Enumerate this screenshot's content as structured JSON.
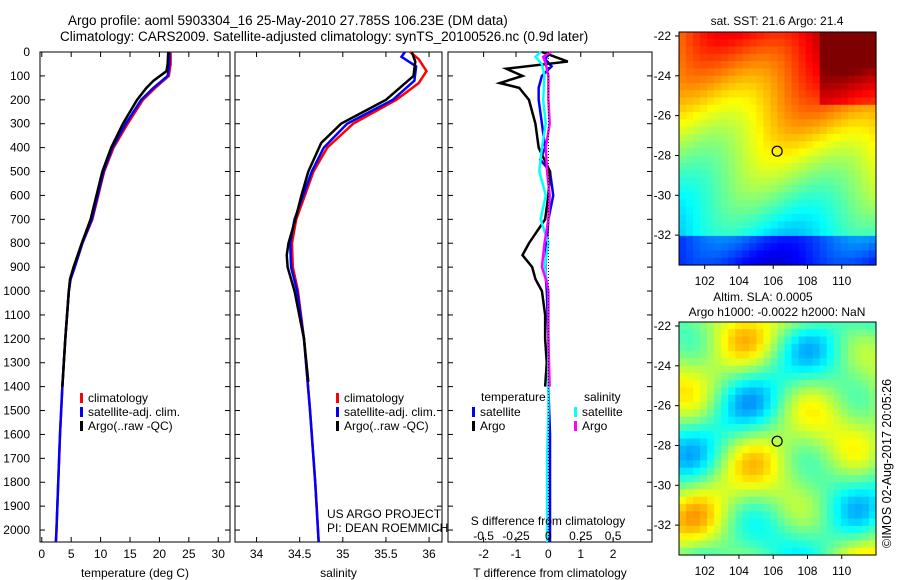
{
  "title_line1": "Argo profile: aoml 5903304_16 25-May-2010 27.785S 106.23E (DM data)",
  "title_line2": "Climatology: CARS2009. Satellite-adjusted climatology: synTS_20100526.nc (0.9d later)",
  "credit": "©IMOS 02-Aug-2017 20:05:26",
  "colors": {
    "climatology": "#ff0000",
    "satellite": "#0000ff",
    "argo": "#000000",
    "sal_satellite": "#00ffff",
    "sal_argo": "#ff00ff"
  },
  "chart_data": [
    {
      "type": "line",
      "id": "temp",
      "xlabel": "temperature (deg C)",
      "ylabel": "",
      "xlim": [
        -0.3,
        32
      ],
      "ylim": [
        2050,
        0
      ],
      "xticks": [
        0,
        5,
        10,
        15,
        20,
        25,
        30
      ],
      "yticks": [
        0,
        100,
        200,
        300,
        400,
        500,
        600,
        700,
        800,
        900,
        1000,
        1100,
        1200,
        1300,
        1400,
        1500,
        1600,
        1700,
        1800,
        1900,
        2000
      ],
      "legend": [
        "climatology",
        "satellite-adj. clim.",
        "Argo(..raw -QC)"
      ],
      "series": [
        {
          "name": "climatology",
          "color": "#ff0000",
          "depth": [
            0,
            50,
            100,
            150,
            200,
            300,
            400,
            500,
            600,
            700,
            800,
            900,
            950,
            1000,
            1200,
            1400,
            1600,
            1800,
            2000,
            2050
          ],
          "values": [
            21.9,
            21.9,
            21.6,
            19.3,
            17.2,
            14.6,
            12.2,
            10.6,
            9.6,
            8.6,
            6.9,
            5.6,
            4.9,
            4.6,
            4.0,
            3.5,
            3.1,
            2.8,
            2.5,
            2.4
          ]
        },
        {
          "name": "satellite-adj. clim.",
          "color": "#0000ff",
          "depth": [
            0,
            50,
            100,
            150,
            200,
            300,
            400,
            500,
            600,
            700,
            800,
            900,
            950,
            1000,
            1200,
            1400,
            1600,
            1800,
            2000,
            2050
          ],
          "values": [
            21.7,
            21.7,
            21.4,
            19.0,
            16.9,
            14.3,
            12.0,
            10.5,
            9.5,
            8.5,
            6.9,
            5.6,
            4.9,
            4.6,
            4.0,
            3.5,
            3.1,
            2.8,
            2.5,
            2.4
          ]
        },
        {
          "name": "Argo(..raw -QC)",
          "color": "#000000",
          "depth": [
            0,
            50,
            80,
            120,
            150,
            200,
            300,
            400,
            500,
            600,
            700,
            800,
            900,
            950,
            1000,
            1200,
            1400
          ],
          "values": [
            21.5,
            21.4,
            21.2,
            19.0,
            17.8,
            16.2,
            13.8,
            11.8,
            10.3,
            9.3,
            8.3,
            6.8,
            5.4,
            4.8,
            4.6,
            4.0,
            3.5
          ]
        }
      ]
    },
    {
      "type": "line",
      "id": "sal",
      "xlabel": "salinity",
      "ylabel": "",
      "xlim": [
        33.75,
        36.15
      ],
      "ylim": [
        2050,
        0
      ],
      "xticks": [
        34,
        34.5,
        35,
        35.5,
        36
      ],
      "legend": [
        "climatology",
        "satellite-adj. clim.",
        "Argo(..raw -QC)"
      ],
      "annotation": [
        "US ARGO PROJECT",
        "PI: DEAN ROEMMICH"
      ],
      "series": [
        {
          "name": "climatology",
          "color": "#ff0000",
          "depth": [
            0,
            30,
            80,
            130,
            200,
            300,
            400,
            500,
            600,
            700,
            800,
            900,
            1000,
            1200,
            1500,
            1800,
            2050
          ],
          "values": [
            35.78,
            35.88,
            35.97,
            35.88,
            35.62,
            35.12,
            34.82,
            34.66,
            34.56,
            34.46,
            34.41,
            34.42,
            34.48,
            34.55,
            34.62,
            34.68,
            34.72
          ]
        },
        {
          "name": "satellite-adj. clim.",
          "color": "#0000ff",
          "depth": [
            0,
            20,
            60,
            120,
            200,
            300,
            400,
            500,
            600,
            700,
            800,
            900,
            1000,
            1200,
            1500,
            1800,
            2050
          ],
          "values": [
            35.72,
            35.68,
            35.85,
            35.83,
            35.58,
            35.05,
            34.78,
            34.64,
            34.54,
            34.44,
            34.39,
            34.4,
            34.47,
            34.55,
            34.62,
            34.68,
            34.72
          ]
        },
        {
          "name": "Argo(..raw -QC)",
          "color": "#000000",
          "depth": [
            0,
            40,
            100,
            200,
            300,
            380,
            500,
            600,
            700,
            800,
            850,
            900,
            950,
            1000,
            1200,
            1380
          ],
          "values": [
            35.8,
            35.84,
            35.82,
            35.5,
            34.98,
            34.75,
            34.6,
            34.52,
            34.45,
            34.37,
            34.35,
            34.36,
            34.4,
            34.44,
            34.55,
            34.6
          ]
        }
      ]
    },
    {
      "type": "line",
      "id": "diff",
      "xlabel": "T difference from climatology",
      "x2label": "S difference from climatology",
      "xlim": [
        -3.1,
        3.2
      ],
      "ylim": [
        2050,
        0
      ],
      "xticks": [
        -2,
        -1,
        0,
        1,
        2
      ],
      "x2ticks": [
        -0.5,
        -0.25,
        0,
        0.25,
        0.5
      ],
      "legend_groups": [
        {
          "title": "temperature",
          "items": [
            "satellite",
            "Argo"
          ]
        },
        {
          "title": "salinity",
          "items": [
            "satellite",
            "Argo"
          ]
        }
      ],
      "series": [
        {
          "name": "T satellite",
          "color": "#0000ff",
          "depth": [
            0,
            30,
            60,
            100,
            150,
            200,
            300,
            400,
            450,
            500,
            600,
            700,
            800,
            900,
            1000,
            1200,
            1400,
            1600,
            2050
          ],
          "values": [
            0.05,
            -0.1,
            0.1,
            -0.2,
            -0.3,
            -0.3,
            -0.2,
            -0.1,
            -0.25,
            0.05,
            0.15,
            0.0,
            -0.05,
            -0.1,
            -0.05,
            0.0,
            0.0,
            0.05,
            0.05
          ]
        },
        {
          "name": "T Argo",
          "color": "#000000",
          "depth": [
            0,
            40,
            70,
            100,
            130,
            150,
            200,
            250,
            300,
            400,
            500,
            600,
            700,
            800,
            850,
            900,
            950,
            1000,
            1100,
            1200,
            1300,
            1400
          ],
          "values": [
            -0.2,
            0.6,
            -1.3,
            -0.8,
            -1.5,
            -0.9,
            -0.6,
            -0.5,
            -0.4,
            -0.3,
            0.05,
            0.0,
            -0.1,
            -0.6,
            -0.8,
            -0.5,
            -0.4,
            -0.2,
            -0.1,
            -0.1,
            -0.05,
            -0.1
          ]
        },
        {
          "name": "S satellite",
          "color": "#00ffff",
          "depth": [
            0,
            20,
            50,
            100,
            200,
            300,
            400,
            500,
            600,
            700,
            800,
            900,
            1000,
            1200,
            1500,
            1700,
            2050
          ],
          "values": [
            -0.06,
            -0.1,
            -0.05,
            -0.03,
            -0.04,
            -0.02,
            -0.05,
            -0.07,
            -0.02,
            -0.06,
            0.0,
            -0.03,
            0.0,
            0.0,
            0.0,
            -0.01,
            -0.01
          ]
        },
        {
          "name": "S Argo",
          "color": "#ff00ff",
          "depth": [
            0,
            20,
            50,
            100,
            200,
            300,
            400,
            500,
            600,
            700,
            800,
            900,
            950,
            1000,
            1200,
            1400
          ],
          "values": [
            0.02,
            -0.04,
            -0.02,
            0.0,
            0.0,
            0.01,
            -0.02,
            -0.01,
            0.01,
            0.0,
            -0.03,
            -0.05,
            -0.02,
            0.0,
            0.0,
            0.01
          ]
        }
      ]
    },
    {
      "type": "heatmap",
      "id": "sst",
      "title": "sat. SST: 21.6 Argo: 21.4",
      "xlim": [
        100.5,
        112
      ],
      "ylim": [
        -33.5,
        -21.8
      ],
      "xticks": [
        102,
        104,
        106,
        108,
        110
      ],
      "yticks": [
        -22,
        -24,
        -26,
        -28,
        -30,
        -32
      ],
      "marker": [
        106.23,
        -27.785
      ]
    },
    {
      "type": "heatmap",
      "id": "sla",
      "title": "Altim. SLA: 0.0005",
      "subtitle": "Argo h1000: -0.0022 h2000: NaN",
      "xlim": [
        100.5,
        112
      ],
      "ylim": [
        -33.5,
        -21.8
      ],
      "xticks": [
        102,
        104,
        106,
        108,
        110
      ],
      "yticks": [
        -22,
        -24,
        -26,
        -28,
        -30,
        -32
      ],
      "marker": [
        106.23,
        -27.785
      ]
    }
  ]
}
